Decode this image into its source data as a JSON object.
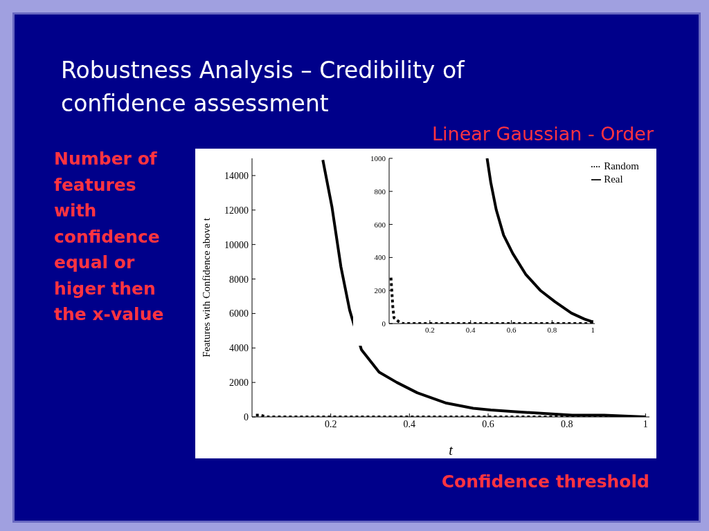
{
  "chart_data": [
    {
      "type": "line",
      "title": "Robustness Analysis – Credibility of confidence assessment",
      "subtitle": "Linear Gaussian - Order",
      "xlabel": "t",
      "ylabel": "Features with Confidence above t",
      "annotations": [
        "Number of features with confidence equal or higer then the x-value",
        "Confidence threshold"
      ],
      "xlim": [
        0,
        1.01
      ],
      "xticks": [
        0.2,
        0.4,
        0.6,
        0.8,
        1
      ],
      "ylim": [
        0,
        15000
      ],
      "yticks": [
        0,
        2000,
        4000,
        6000,
        8000,
        10000,
        12000,
        14000
      ],
      "grid": false,
      "legend": false,
      "series": [
        {
          "color": "#000000",
          "line_style": "dotted",
          "x": [
            0.01,
            0.02,
            0.04,
            0.2,
            0.4,
            0.6,
            0.8,
            1.0
          ],
          "values": [
            100,
            100,
            0,
            0,
            0,
            0,
            0,
            0
          ]
        },
        {
          "color": "#000000",
          "line_style": "solid",
          "x": [
            0.18,
            0.203,
            0.226,
            0.248,
            0.278,
            0.323,
            0.368,
            0.42,
            0.494,
            0.562,
            0.607,
            0.67,
            0.742,
            0.814,
            0.895,
            1.0
          ],
          "values": [
            14900,
            12200,
            8700,
            6200,
            3900,
            2600,
            2000,
            1400,
            800,
            500,
            400,
            300,
            200,
            100,
            100,
            0
          ]
        }
      ]
    },
    {
      "type": "line",
      "xlim": [
        0,
        1.01
      ],
      "xticks": [
        0.2,
        0.4,
        0.6,
        0.8,
        1
      ],
      "ylim": [
        0,
        1000
      ],
      "yticks": [
        0,
        200,
        400,
        600,
        800,
        1000
      ],
      "grid": false,
      "legend": "top right",
      "series": [
        {
          "name": "Random",
          "color": "#000000",
          "line_style": "dotted",
          "x": [
            0.009,
            0.013,
            0.018,
            0.024,
            0.045,
            0.067,
            0.2,
            0.4,
            0.6,
            0.8,
            1.0
          ],
          "values": [
            278,
            201,
            104,
            35,
            14,
            0,
            0,
            0,
            0,
            0,
            0
          ]
        },
        {
          "name": "Real",
          "color": "#000000",
          "line_style": "solid",
          "x": [
            0.481,
            0.499,
            0.526,
            0.562,
            0.607,
            0.67,
            0.742,
            0.814,
            0.895,
            0.958,
            1.0
          ],
          "values": [
            1000,
            854,
            688,
            535,
            424,
            299,
            201,
            132,
            63,
            28,
            10
          ]
        }
      ]
    }
  ]
}
